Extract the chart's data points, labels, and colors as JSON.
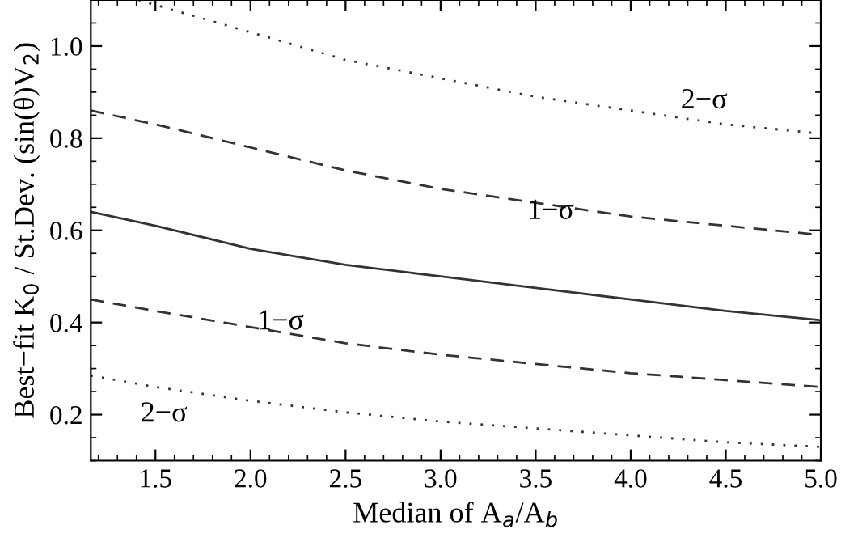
{
  "chart_data": {
    "type": "line",
    "xlabel": "Median of A$_{a}$/A$_{b}$",
    "ylabel": "Best−fit K$_{0}$ / St.Dev. (sin(θ)V$_{2}$)",
    "xlim": [
      1.16,
      5.0
    ],
    "ylim": [
      0.1,
      1.1
    ],
    "xticks": [
      1.5,
      {
        "value": 2,
        "label": "2.0"
      },
      2.5,
      {
        "value": 3,
        "label": "3.0"
      },
      3.5,
      {
        "value": 4,
        "label": "4.0"
      },
      4.5,
      {
        "value": 5,
        "label": "5.0"
      }
    ],
    "yticks": [
      0.2,
      0.4,
      0.6,
      0.8,
      {
        "value": 1,
        "label": "1.0"
      }
    ],
    "grid": false,
    "legend": false,
    "marker": "none",
    "series": [
      {
        "color": "#333333",
        "line_style": "dotted",
        "x": [
          1.41,
          2.0,
          2.5,
          3.0,
          3.5,
          4.0,
          4.5,
          5.0
        ],
        "values": [
          1.1,
          1.03,
          0.97,
          0.93,
          0.89,
          0.86,
          0.83,
          0.81
        ]
      },
      {
        "color": "#333333",
        "line_style": "dashed",
        "x": [
          1.16,
          1.5,
          2.0,
          2.5,
          3.0,
          3.5,
          4.0,
          4.5,
          5.0
        ],
        "values": [
          0.86,
          0.83,
          0.78,
          0.73,
          0.69,
          0.66,
          0.63,
          0.61,
          0.59
        ]
      },
      {
        "color": "#333333",
        "line_style": "solid",
        "x": [
          1.16,
          1.5,
          2.0,
          2.5,
          3.0,
          3.5,
          4.0,
          4.5,
          5.0
        ],
        "values": [
          0.64,
          0.61,
          0.56,
          0.525,
          0.5,
          0.475,
          0.45,
          0.425,
          0.405
        ]
      },
      {
        "color": "#333333",
        "line_style": "dashed",
        "x": [
          1.16,
          1.5,
          2.0,
          2.5,
          3.0,
          3.5,
          4.0,
          4.5,
          5.0
        ],
        "values": [
          0.45,
          0.425,
          0.39,
          0.355,
          0.33,
          0.31,
          0.29,
          0.275,
          0.26
        ]
      },
      {
        "color": "#333333",
        "line_style": "dotted",
        "x": [
          1.16,
          1.5,
          2.0,
          2.5,
          3.0,
          3.5,
          4.0,
          4.5,
          5.0
        ],
        "values": [
          0.285,
          0.26,
          0.23,
          0.205,
          0.185,
          0.17,
          0.155,
          0.14,
          0.13
        ]
      }
    ],
    "annotations": [
      "2−σ",
      "1−σ",
      "1−σ",
      "2−σ"
    ]
  }
}
